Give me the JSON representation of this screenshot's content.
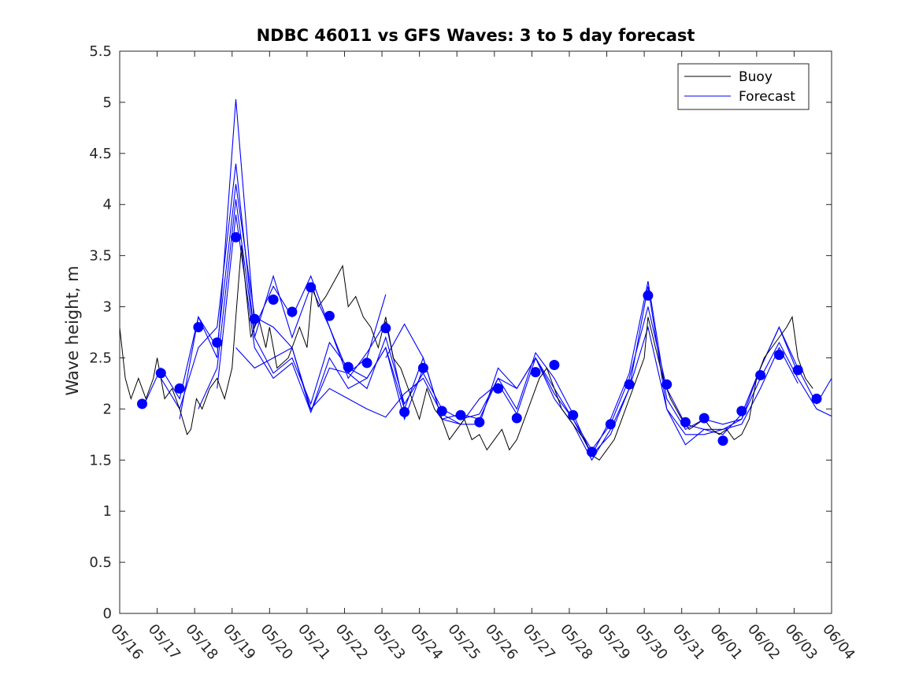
{
  "colors": {
    "buoy": "#000000",
    "forecast": "#0000ff",
    "axis": "#262626"
  },
  "chart_data": {
    "type": "line",
    "title": "NDBC 46011 vs GFS Waves: 3 to 5 day forecast",
    "xlabel": "",
    "ylabel": "Wave height, m",
    "ylim": [
      0,
      5.5
    ],
    "yticks": [
      "0",
      "0.5",
      "1",
      "1.5",
      "2",
      "2.5",
      "3",
      "3.5",
      "4",
      "4.5",
      "5",
      "5.5"
    ],
    "xlim_days": [
      0,
      19
    ],
    "xticks": [
      "05/16",
      "05/17",
      "05/18",
      "05/19",
      "05/20",
      "05/21",
      "05/22",
      "05/23",
      "05/24",
      "05/25",
      "05/26",
      "05/27",
      "05/28",
      "05/29",
      "05/30",
      "05/31",
      "06/01",
      "06/02",
      "06/03",
      "06/04"
    ],
    "legend": {
      "position": "top-right",
      "entries": [
        "Buoy",
        "Forecast"
      ]
    },
    "buoy": {
      "name": "Buoy",
      "days": [
        0.0,
        0.15,
        0.3,
        0.5,
        0.7,
        0.9,
        1.0,
        1.2,
        1.4,
        1.6,
        1.8,
        1.9,
        2.05,
        2.2,
        2.4,
        2.6,
        2.8,
        3.0,
        3.1,
        3.25,
        3.5,
        3.7,
        3.9,
        4.0,
        4.2,
        4.5,
        4.8,
        5.0,
        5.15,
        5.3,
        5.5,
        5.8,
        5.95,
        6.1,
        6.3,
        6.5,
        6.7,
        6.9,
        7.1,
        7.3,
        7.5,
        7.7,
        8.0,
        8.2,
        8.4,
        8.6,
        8.8,
        9.0,
        9.2,
        9.4,
        9.6,
        9.8,
        10.0,
        10.2,
        10.4,
        10.6,
        10.8,
        11.0,
        11.2,
        11.4,
        11.6,
        11.8,
        12.0,
        12.2,
        12.4,
        12.6,
        12.8,
        13.0,
        13.2,
        13.4,
        13.6,
        13.8,
        14.0,
        14.1,
        14.3,
        14.5,
        14.7,
        15.0,
        15.2,
        15.4,
        15.6,
        15.8,
        16.0,
        16.2,
        16.4,
        16.6,
        16.8,
        17.0,
        17.2,
        17.4,
        17.6,
        17.8,
        17.95,
        18.1,
        18.3,
        18.5
      ],
      "values": [
        2.8,
        2.3,
        2.1,
        2.3,
        2.1,
        2.3,
        2.5,
        2.1,
        2.2,
        2.0,
        1.75,
        1.8,
        2.1,
        2.0,
        2.2,
        2.3,
        2.1,
        2.4,
        2.9,
        3.6,
        2.7,
        2.9,
        2.6,
        2.8,
        2.4,
        2.5,
        2.8,
        2.6,
        3.2,
        3.0,
        3.1,
        3.3,
        3.4,
        3.0,
        3.1,
        2.9,
        2.8,
        2.6,
        2.9,
        2.5,
        2.4,
        2.2,
        1.9,
        2.2,
        2.0,
        1.9,
        1.7,
        1.8,
        1.9,
        1.7,
        1.75,
        1.6,
        1.7,
        1.8,
        1.6,
        1.7,
        1.9,
        2.1,
        2.3,
        2.4,
        2.2,
        2.0,
        1.9,
        1.8,
        1.7,
        1.55,
        1.5,
        1.6,
        1.7,
        1.9,
        2.1,
        2.3,
        2.5,
        2.9,
        2.6,
        2.3,
        2.1,
        1.9,
        1.8,
        1.85,
        1.9,
        1.8,
        1.75,
        1.8,
        1.7,
        1.75,
        1.9,
        2.3,
        2.5,
        2.6,
        2.7,
        2.8,
        2.9,
        2.5,
        2.3,
        2.2
      ]
    },
    "forecast_markers": {
      "days": [
        0.6,
        1.1,
        1.6,
        2.1,
        2.6,
        3.1,
        3.6,
        4.1,
        4.6,
        5.1,
        5.6,
        6.1,
        6.6,
        7.1,
        7.6,
        8.1,
        8.6,
        9.1,
        9.6,
        10.1,
        10.6,
        11.1,
        11.6,
        12.1,
        12.6,
        13.1,
        13.6,
        14.1,
        14.6,
        15.1,
        15.6,
        16.1,
        16.6,
        17.1,
        17.6,
        18.1,
        18.6
      ],
      "values": [
        2.05,
        2.35,
        2.2,
        2.8,
        2.65,
        3.68,
        2.88,
        3.07,
        2.95,
        3.19,
        2.91,
        2.41,
        2.45,
        2.79,
        1.97,
        2.4,
        1.98,
        1.94,
        1.87,
        2.2,
        1.91,
        2.36,
        2.43,
        1.94,
        1.58,
        1.85,
        2.24,
        3.11,
        2.24,
        1.87,
        1.91,
        1.69,
        1.98,
        2.33,
        2.53,
        2.38,
        2.1
      ]
    },
    "forecast_runs": [
      {
        "days": [
          0.6,
          1.1,
          1.6,
          2.1,
          2.6,
          3.1,
          3.6,
          4.1,
          4.6,
          5.1,
          5.6,
          6.1,
          6.6,
          7.1
        ],
        "values": [
          2.0,
          2.4,
          2.1,
          2.9,
          2.5,
          5.03,
          2.8,
          3.2,
          2.9,
          3.3,
          2.8,
          2.35,
          2.5,
          3.12
        ]
      },
      {
        "days": [
          1.1,
          1.6,
          2.1,
          2.6,
          3.1,
          3.6,
          4.1,
          4.6,
          5.1,
          5.6,
          6.1,
          6.6,
          7.1,
          7.6
        ],
        "values": [
          2.3,
          2.0,
          2.6,
          2.8,
          4.4,
          2.7,
          3.3,
          2.7,
          3.2,
          2.8,
          2.3,
          2.55,
          2.85,
          2.0
        ]
      },
      {
        "days": [
          1.6,
          2.1,
          2.6,
          3.1,
          3.6,
          4.1,
          4.6,
          5.1,
          5.6,
          6.1,
          6.6,
          7.1,
          7.6,
          8.1
        ],
        "values": [
          1.9,
          2.9,
          2.6,
          4.2,
          2.9,
          2.8,
          2.6,
          1.97,
          2.5,
          2.2,
          2.3,
          2.6,
          1.9,
          2.4
        ]
      },
      {
        "days": [
          2.1,
          2.6,
          3.1,
          3.6,
          4.1,
          4.6,
          5.1,
          5.6,
          6.1,
          6.6,
          7.1,
          7.6,
          8.1,
          8.6,
          9.1,
          9.6,
          10.1,
          10.6,
          11.1,
          11.6,
          12.1,
          12.6,
          13.1,
          13.6,
          14.1,
          14.6,
          15.1,
          15.6,
          16.1,
          16.6,
          17.1,
          17.6,
          18.1,
          18.6,
          19.0
        ],
        "values": [
          2.0,
          2.4,
          4.05,
          2.7,
          2.35,
          2.5,
          2.05,
          2.65,
          2.4,
          2.3,
          2.6,
          2.0,
          2.5,
          1.9,
          1.95,
          1.9,
          2.3,
          2.0,
          2.55,
          2.3,
          1.95,
          1.55,
          1.9,
          2.35,
          3.25,
          2.1,
          1.8,
          1.9,
          1.85,
          1.9,
          2.4,
          2.8,
          2.4,
          2.05,
          2.3
        ]
      },
      {
        "days": [
          2.6,
          3.1,
          3.6,
          4.1,
          4.6,
          5.1,
          5.6,
          6.1,
          6.6,
          7.1,
          7.6,
          8.1,
          8.6,
          9.1,
          9.6,
          10.1,
          10.6,
          11.1,
          11.6,
          12.1,
          12.6,
          13.1,
          13.6,
          14.1,
          14.6,
          15.1,
          15.6,
          16.1,
          16.6,
          17.1,
          17.6,
          18.1,
          18.6,
          19.0
        ],
        "values": [
          2.2,
          3.9,
          2.6,
          2.3,
          2.45,
          1.97,
          2.4,
          2.35,
          2.2,
          2.7,
          2.05,
          2.35,
          2.0,
          1.9,
          1.95,
          2.3,
          2.2,
          2.5,
          2.2,
          1.9,
          1.6,
          1.85,
          2.3,
          3.0,
          2.2,
          1.85,
          1.8,
          1.8,
          1.9,
          2.3,
          2.65,
          2.3,
          2.0,
          1.93
        ]
      },
      {
        "days": [
          3.1,
          3.6,
          4.1,
          4.6,
          5.1,
          5.6,
          6.1,
          6.6,
          7.1,
          7.6,
          8.1,
          8.6,
          9.1,
          9.6,
          10.1,
          10.6,
          11.1,
          11.6,
          12.1,
          12.6,
          13.1,
          13.6,
          14.1,
          14.6,
          15.1,
          15.6,
          16.1,
          16.6,
          17.1,
          17.6,
          18.1
        ],
        "values": [
          2.6,
          2.4,
          2.5,
          2.6,
          2.0,
          2.2,
          2.1,
          2.0,
          1.92,
          2.15,
          2.3,
          1.95,
          1.85,
          2.1,
          2.25,
          1.95,
          2.5,
          2.1,
          1.85,
          1.5,
          1.8,
          2.2,
          2.8,
          2.0,
          1.75,
          1.75,
          1.8,
          1.85,
          2.2,
          2.6,
          2.25
        ]
      },
      {
        "days": [
          7.1,
          7.6,
          8.1,
          8.6,
          9.1,
          9.6,
          10.1,
          10.6,
          11.1,
          11.6,
          12.1,
          12.6,
          13.1,
          13.6,
          14.1,
          14.6,
          15.1,
          15.6,
          16.1,
          16.6,
          17.1,
          17.6,
          18.1
        ],
        "values": [
          2.5,
          2.83,
          2.5,
          1.9,
          1.85,
          1.85,
          2.4,
          2.2,
          2.5,
          2.15,
          1.9,
          1.55,
          1.75,
          2.2,
          3.2,
          2.0,
          1.65,
          1.8,
          1.75,
          1.95,
          2.4,
          2.8,
          2.35
        ]
      }
    ]
  }
}
